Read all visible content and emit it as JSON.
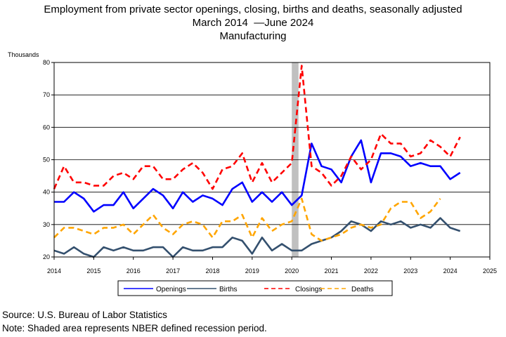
{
  "header": {
    "title_line1": "Employment from private sector openings, closing, births and deaths, seasonally adjusted",
    "title_line2_start": "March 2014",
    "title_line2_end": "June 2024",
    "title_line3": "Manufacturing"
  },
  "chart_data": {
    "type": "line",
    "ylabel": "Thousands",
    "ylim": [
      20,
      80
    ],
    "yticks": [
      20,
      30,
      40,
      50,
      60,
      70,
      80
    ],
    "xlim": [
      2014,
      2025
    ],
    "xticks": [
      "2014",
      "2015",
      "2016",
      "2017",
      "2018",
      "2019",
      "2020",
      "2021",
      "2022",
      "2023",
      "2024",
      "2025"
    ],
    "grid": "horizontal",
    "legend_position": "bottom",
    "recession": {
      "start": 2020.0,
      "end": 2020.17,
      "color": "#c0c0c0"
    },
    "x_start": 2014.0,
    "x_step": 0.25,
    "series": [
      {
        "name": "Openings",
        "color": "#0000ff",
        "dash": "solid",
        "values": [
          37,
          37,
          40,
          38,
          34,
          36,
          36,
          40,
          35,
          38,
          41,
          39,
          35,
          40,
          37,
          39,
          38,
          36,
          41,
          43,
          37,
          40,
          37,
          40,
          36,
          39,
          55,
          48,
          47,
          43,
          51,
          56,
          43,
          52,
          52,
          51,
          48,
          49,
          48,
          48,
          44,
          46
        ]
      },
      {
        "name": "Births",
        "color": "#34506e",
        "dash": "solid",
        "values": [
          22,
          21,
          23,
          21,
          20,
          23,
          22,
          23,
          22,
          22,
          23,
          23,
          20,
          23,
          22,
          22,
          23,
          23,
          26,
          25,
          21,
          26,
          22,
          24,
          22,
          22,
          24,
          25,
          26,
          28,
          31,
          30,
          28,
          31,
          30,
          31,
          29,
          30,
          29,
          32,
          29,
          28
        ]
      },
      {
        "name": "Closings",
        "color": "#ff0000",
        "dash": "dashed",
        "values": [
          41,
          48,
          43,
          43,
          42,
          42,
          45,
          46,
          44,
          48,
          48,
          44,
          44,
          47,
          49,
          46,
          41,
          47,
          48,
          52,
          43,
          49,
          43,
          46,
          49,
          79,
          48,
          46,
          42,
          45,
          51,
          47,
          50,
          58,
          55,
          55,
          51,
          52,
          56,
          54,
          51,
          57
        ]
      },
      {
        "name": "Deaths",
        "color": "#ffa500",
        "dash": "dashed",
        "values": [
          26,
          29,
          29,
          28,
          27,
          29,
          29,
          30,
          27,
          30,
          33,
          29,
          27,
          30,
          31,
          30,
          26,
          31,
          31,
          33,
          26,
          32,
          28,
          30,
          31,
          38,
          27,
          25,
          26,
          27,
          29,
          30,
          29,
          30,
          35,
          37,
          37,
          32,
          34,
          38
        ]
      }
    ]
  },
  "legend": {
    "openings": "Openings",
    "births": "Births",
    "closings": "Closings",
    "deaths": "Deaths"
  },
  "footer": {
    "source": "Source: U.S. Bureau of Labor Statistics",
    "note": "Note: Shaded area represents NBER defined recession period."
  }
}
